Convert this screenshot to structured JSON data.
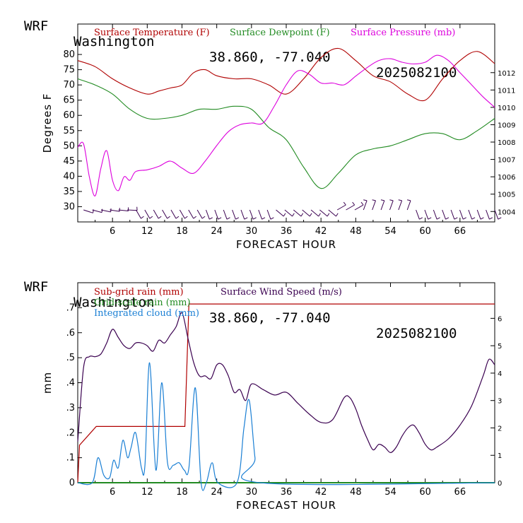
{
  "header_top": {
    "model": "WRF",
    "location": "Washington",
    "coords": "38.860, -77.040",
    "run": "2025082100"
  },
  "header_bottom": {
    "model": "WRF",
    "location": "Washington",
    "coords": "38.860, -77.040",
    "run": "2025082100"
  },
  "colors": {
    "temperature": "#b00000",
    "dewpoint": "#228b22",
    "pressure": "#dd00dd",
    "subgrid_rain": "#b00000",
    "gridscale_rain": "#228b22",
    "cloud": "#1a7fd4",
    "wind_speed": "#3a0050",
    "barbs": "#3a0050"
  },
  "chart_data": [
    {
      "type": "line",
      "xlabel": "FORECAST HOUR",
      "ylabel": "Degrees F",
      "xlim": [
        0,
        72
      ],
      "ylim": [
        25,
        90
      ],
      "x_ticks": [
        "6",
        "12",
        "18",
        "24",
        "30",
        "36",
        "42",
        "48",
        "54",
        "60",
        "66"
      ],
      "y_ticks": [
        "30",
        "35",
        "40",
        "45",
        "50",
        "55",
        "60",
        "65",
        "70",
        "75",
        "80"
      ],
      "y2_ticks": [
        "1004",
        "1005",
        "1006",
        "1007",
        "1008",
        "1009",
        "1010",
        "1011",
        "1012"
      ],
      "y2lim": [
        1003.4,
        1014.8
      ],
      "legend": [
        "Surface Temperature (F)",
        "Surface Dewpoint (F)",
        "Surface Pressure (mb)"
      ],
      "series": [
        {
          "name": "Surface Temperature (F)",
          "axis": "left",
          "x": [
            0,
            3,
            6,
            9,
            12,
            14,
            16,
            18,
            20,
            22,
            24,
            27,
            30,
            33,
            36,
            39,
            42,
            45,
            48,
            51,
            54,
            57,
            60,
            63,
            66,
            69,
            72
          ],
          "y": [
            78,
            76,
            72,
            69,
            67,
            68,
            69,
            70,
            74,
            75,
            73,
            72,
            72,
            70,
            67,
            72,
            79,
            82,
            78,
            73,
            71,
            67,
            65,
            72,
            78,
            81,
            77
          ]
        },
        {
          "name": "Surface Dewpoint (F)",
          "axis": "left",
          "x": [
            0,
            3,
            6,
            9,
            12,
            15,
            18,
            21,
            24,
            27,
            30,
            33,
            36,
            39,
            42,
            45,
            48,
            51,
            54,
            57,
            60,
            63,
            66,
            69,
            72
          ],
          "y": [
            72,
            70,
            67,
            62,
            59,
            59,
            60,
            62,
            62,
            63,
            62,
            56,
            52,
            43,
            36,
            41,
            47,
            49,
            50,
            52,
            54,
            54,
            52,
            55,
            59
          ]
        },
        {
          "name": "Surface Pressure (mb)",
          "axis": "right",
          "x": [
            0,
            1,
            2,
            3,
            4,
            5,
            6,
            7,
            8,
            9,
            10,
            12,
            14,
            16,
            18,
            20,
            22,
            24,
            26,
            28,
            30,
            32,
            34,
            36,
            38,
            40,
            42,
            44,
            46,
            48,
            50,
            52,
            54,
            56,
            58,
            60,
            62,
            64,
            66,
            68,
            70,
            72
          ],
          "y": [
            1007.7,
            1007.9,
            1006.0,
            1004.9,
            1006.5,
            1007.5,
            1005.8,
            1005.2,
            1006.0,
            1005.8,
            1006.3,
            1006.4,
            1006.6,
            1006.9,
            1006.5,
            1006.2,
            1006.9,
            1007.8,
            1008.6,
            1009.0,
            1009.1,
            1009.1,
            1010.1,
            1011.3,
            1012.1,
            1011.9,
            1011.4,
            1011.4,
            1011.3,
            1011.8,
            1012.3,
            1012.7,
            1012.8,
            1012.6,
            1012.5,
            1012.6,
            1013.0,
            1012.7,
            1012.0,
            1011.3,
            1010.6,
            1010.0
          ]
        }
      ],
      "wind_barbs": {
        "row": "bottom",
        "hours_start": 1,
        "hours_end": 72,
        "count": 48
      }
    },
    {
      "type": "line",
      "xlabel": "FORECAST HOUR",
      "ylabel": "mm",
      "xlim": [
        0,
        72
      ],
      "ylim": [
        0,
        0.8
      ],
      "y2lim": [
        0,
        7.3
      ],
      "x_ticks": [
        "6",
        "12",
        "18",
        "24",
        "30",
        "36",
        "42",
        "48",
        "54",
        "60",
        "66"
      ],
      "y_ticks": [
        "0",
        ".1",
        ".2",
        ".3",
        ".4",
        ".5",
        ".6",
        ".7"
      ],
      "y2_ticks": [
        "0",
        "1",
        "2",
        "3",
        "4",
        "5",
        "6"
      ],
      "legend": [
        "Sub-grid rain (mm)",
        "Grid-scale rain (mm)",
        "Integrated cloud (mm)",
        "Surface Wind Speed (m/s)"
      ],
      "series": [
        {
          "name": "Sub-grid rain (mm)",
          "axis": "left",
          "step": true,
          "x": [
            0,
            0.3,
            3.2,
            18.5,
            19.2,
            72
          ],
          "y": [
            0,
            0.15,
            0.225,
            0.225,
            0.715,
            0.715
          ]
        },
        {
          "name": "Grid-scale rain (mm)",
          "axis": "left",
          "x": [
            0,
            72
          ],
          "y": [
            0,
            0
          ]
        },
        {
          "name": "Integrated cloud (mm)",
          "axis": "left",
          "x": [
            0,
            2.5,
            3.5,
            4.5,
            5.5,
            6.2,
            7,
            7.8,
            8.6,
            9.2,
            10,
            11,
            11.6,
            12.4,
            13.5,
            14.5,
            15.5,
            16.5,
            17.5,
            18.4,
            19.2,
            20.3,
            21.3,
            22.2,
            23.2,
            24.2,
            27.5,
            28.7,
            29.6,
            30.6,
            31.5,
            72
          ],
          "y": [
            0,
            0,
            0.1,
            0.03,
            0.02,
            0.09,
            0.06,
            0.17,
            0.1,
            0.14,
            0.2,
            0.06,
            0.07,
            0.48,
            0.05,
            0.4,
            0.08,
            0.07,
            0.08,
            0.05,
            0.06,
            0.38,
            0.0,
            0.0,
            0.08,
            0.0,
            0.0,
            0.22,
            0.33,
            0.1,
            0.0,
            0
          ]
        },
        {
          "name": "Surface Wind Speed (m/s)",
          "axis": "right",
          "x": [
            0,
            1,
            2,
            3,
            4,
            5,
            6,
            7,
            8,
            9,
            10,
            11,
            12,
            13,
            14,
            15,
            16,
            17,
            18,
            19,
            20,
            21,
            22,
            23,
            24,
            25,
            26,
            27,
            28,
            29,
            30,
            32,
            34,
            36,
            38,
            40,
            42,
            44,
            46,
            47,
            48,
            49,
            50,
            51,
            52,
            53,
            54,
            55,
            56,
            57,
            58,
            59,
            60,
            61,
            62,
            64,
            66,
            68,
            70,
            71,
            72
          ],
          "y": [
            1.5,
            4.2,
            4.6,
            4.6,
            4.7,
            5.1,
            5.6,
            5.3,
            5.0,
            4.9,
            5.1,
            5.1,
            5.0,
            4.8,
            5.2,
            5.1,
            5.4,
            5.7,
            6.2,
            5.3,
            4.4,
            3.9,
            3.9,
            3.8,
            4.3,
            4.3,
            3.9,
            3.3,
            3.4,
            3.0,
            3.6,
            3.4,
            3.2,
            3.3,
            2.9,
            2.5,
            2.2,
            2.3,
            3.1,
            3.1,
            2.7,
            2.1,
            1.6,
            1.2,
            1.4,
            1.3,
            1.1,
            1.3,
            1.7,
            2.0,
            2.1,
            1.8,
            1.4,
            1.2,
            1.3,
            1.6,
            2.1,
            2.8,
            3.9,
            4.5,
            4.3
          ]
        }
      ]
    }
  ]
}
